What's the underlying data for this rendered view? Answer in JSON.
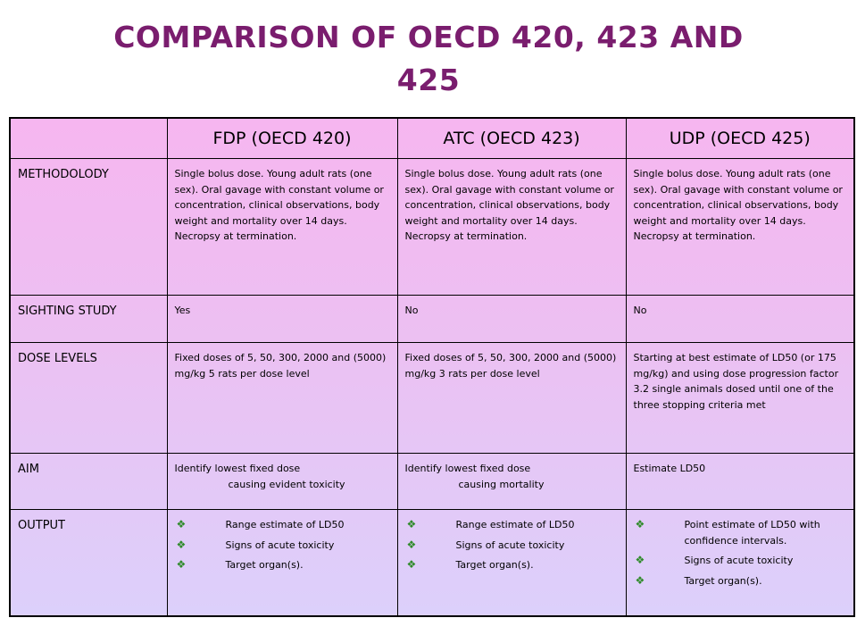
{
  "title": {
    "line1": "COMPARISON OF OECD 420, 423 AND",
    "line2": "425"
  },
  "table": {
    "columns": [
      "",
      "FDP (OECD 420)",
      "ATC (OECD 423)",
      "UDP (OECD 425)"
    ],
    "rows": [
      {
        "label": "METHODOLODY",
        "cells": [
          "Single bolus dose. Young adult rats (one sex). Oral gavage with constant volume or concentration, clinical observations, body weight and mortality over 14 days. Necropsy at termination.",
          "Single bolus dose. Young adult rats (one sex). Oral gavage with constant volume or concentration, clinical observations, body weight and mortality over 14 days. Necropsy at termination.",
          "Single bolus dose. Young adult rats (one sex). Oral gavage with constant volume or concentration, clinical observations, body weight and mortality over 14 days. Necropsy at termination."
        ]
      },
      {
        "label": "SIGHTING STUDY",
        "cells": [
          "Yes",
          "No",
          "No"
        ]
      },
      {
        "label": "DOSE LEVELS",
        "cells": [
          "Fixed doses of 5, 50, 300, 2000 and (5000) mg/kg 5 rats per dose level",
          "Fixed doses of 5, 50, 300, 2000 and (5000) mg/kg 3 rats per dose level",
          "Starting at best estimate of LD50 (or 175 mg/kg) and using dose progression factor 3.2 single animals dosed until one of the three stopping criteria met"
        ]
      },
      {
        "label": "AIM",
        "cells": [
          {
            "first": "Identify lowest fixed dose",
            "rest": "causing evident toxicity"
          },
          {
            "first": "Identify lowest fixed dose",
            "rest": "causing mortality"
          },
          {
            "first": "Estimate LD50",
            "rest": ""
          }
        ]
      },
      {
        "label": "OUTPUT",
        "bullets": [
          [
            "Range estimate of LD50",
            "Signs of acute toxicity",
            "Target organ(s)."
          ],
          [
            "Range estimate of LD50",
            "Signs of acute toxicity",
            "Target organ(s)."
          ],
          [
            "Point estimate of LD50 with confidence intervals.",
            "Signs of acute toxicity",
            "Target organ(s)."
          ]
        ]
      }
    ]
  },
  "icons": {
    "bullet_glyph": "❖",
    "bullet_color": "#2f8a2a"
  },
  "colors": {
    "title": "#7a1d6e",
    "table_top": "#f6b6f0",
    "table_bottom": "#dcd0fb"
  }
}
